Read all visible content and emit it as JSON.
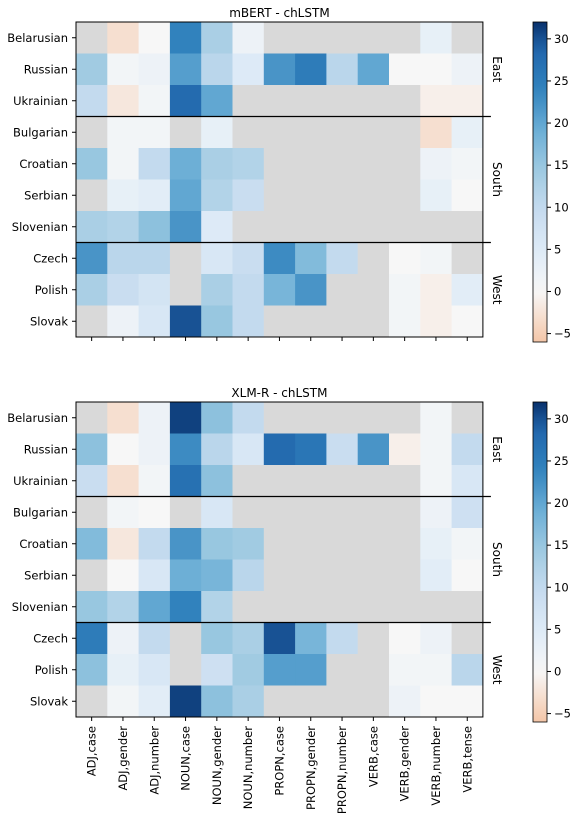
{
  "chart_data": [
    {
      "type": "heatmap",
      "title": "mBERT - chLSTM",
      "rows": [
        "Belarusian",
        "Russian",
        "Ukrainian",
        "Bulgarian",
        "Croatian",
        "Serbian",
        "Slovenian",
        "Czech",
        "Polish",
        "Slovak"
      ],
      "columns": [
        "ADJ,case",
        "ADJ,gender",
        "ADJ,number",
        "NOUN,case",
        "NOUN,gender",
        "NOUN,number",
        "PROPN,case",
        "PROPN,gender",
        "PROPN,number",
        "VERB,case",
        "VERB,gender",
        "VERB,number",
        "VERB,tense"
      ],
      "groups": [
        {
          "label": "East",
          "rows": [
            "Belarusian",
            "Russian",
            "Ukrainian"
          ]
        },
        {
          "label": "South",
          "rows": [
            "Bulgarian",
            "Croatian",
            "Serbian",
            "Slovenian"
          ]
        },
        {
          "label": "West",
          "rows": [
            "Czech",
            "Polish",
            "Slovak"
          ]
        }
      ],
      "values": [
        [
          null,
          -3,
          0,
          24,
          13,
          2,
          null,
          null,
          null,
          null,
          null,
          3,
          null
        ],
        [
          14,
          1,
          2,
          21,
          11,
          5,
          22,
          25,
          11,
          20,
          0,
          0,
          2
        ],
        [
          10,
          -2,
          1,
          28,
          20,
          null,
          null,
          null,
          null,
          null,
          null,
          -1,
          -1
        ],
        [
          null,
          1,
          1,
          null,
          3,
          null,
          null,
          null,
          null,
          null,
          null,
          -3,
          3
        ],
        [
          15,
          1,
          10,
          19,
          13,
          12,
          null,
          null,
          null,
          null,
          null,
          2,
          1
        ],
        [
          null,
          3,
          4,
          20,
          12,
          9,
          null,
          null,
          null,
          null,
          null,
          3,
          0
        ],
        [
          13,
          12,
          16,
          22,
          5,
          null,
          null,
          null,
          null,
          null,
          null,
          null,
          null
        ],
        [
          22,
          11,
          11,
          null,
          6,
          9,
          23,
          17,
          10,
          null,
          0,
          1,
          null
        ],
        [
          13,
          9,
          7,
          null,
          13,
          10,
          18,
          22,
          null,
          null,
          1,
          -1,
          4
        ],
        [
          null,
          2,
          6,
          30,
          15,
          10,
          null,
          null,
          null,
          null,
          1,
          -1,
          0
        ]
      ],
      "missing_color": "#d9d9d9",
      "colorbar": {
        "min": -6,
        "max": 32,
        "ticks": [
          -5,
          0,
          5,
          10,
          15,
          20,
          25,
          30
        ],
        "colormap": "RdBu",
        "center": 0
      }
    },
    {
      "type": "heatmap",
      "title": "XLM-R - chLSTM",
      "rows": [
        "Belarusian",
        "Russian",
        "Ukrainian",
        "Bulgarian",
        "Croatian",
        "Serbian",
        "Slovenian",
        "Czech",
        "Polish",
        "Slovak"
      ],
      "columns": [
        "ADJ,case",
        "ADJ,gender",
        "ADJ,number",
        "NOUN,case",
        "NOUN,gender",
        "NOUN,number",
        "PROPN,case",
        "PROPN,gender",
        "PROPN,number",
        "VERB,case",
        "VERB,gender",
        "VERB,number",
        "VERB,tense"
      ],
      "groups": [
        {
          "label": "East",
          "rows": [
            "Belarusian",
            "Russian",
            "Ukrainian"
          ]
        },
        {
          "label": "South",
          "rows": [
            "Bulgarian",
            "Croatian",
            "Serbian",
            "Slovenian"
          ]
        },
        {
          "label": "West",
          "rows": [
            "Czech",
            "Polish",
            "Slovak"
          ]
        }
      ],
      "values": [
        [
          null,
          -3,
          2,
          31,
          16,
          10,
          null,
          null,
          null,
          null,
          null,
          1,
          null
        ],
        [
          16,
          0,
          2,
          23,
          11,
          6,
          28,
          26,
          9,
          22,
          -1,
          1,
          10
        ],
        [
          9,
          -3,
          1,
          27,
          16,
          null,
          null,
          null,
          null,
          null,
          null,
          1,
          6
        ],
        [
          null,
          1,
          0,
          null,
          6,
          null,
          null,
          null,
          null,
          null,
          null,
          2,
          8
        ],
        [
          17,
          -2,
          10,
          22,
          15,
          14,
          null,
          null,
          null,
          null,
          null,
          3,
          1
        ],
        [
          null,
          0,
          6,
          19,
          18,
          11,
          null,
          null,
          null,
          null,
          null,
          4,
          0
        ],
        [
          15,
          12,
          20,
          24,
          12,
          null,
          null,
          null,
          null,
          null,
          null,
          null,
          null
        ],
        [
          25,
          2,
          10,
          null,
          15,
          13,
          30,
          18,
          10,
          null,
          0,
          2,
          null
        ],
        [
          16,
          3,
          6,
          null,
          8,
          14,
          21,
          21,
          null,
          null,
          1,
          1,
          11
        ],
        [
          null,
          1,
          4,
          31,
          16,
          13,
          null,
          null,
          null,
          null,
          2,
          0,
          0
        ]
      ],
      "missing_color": "#d9d9d9",
      "colorbar": {
        "min": -6,
        "max": 32,
        "ticks": [
          -5,
          0,
          5,
          10,
          15,
          20,
          25,
          30
        ],
        "colormap": "RdBu",
        "center": 0
      }
    }
  ]
}
